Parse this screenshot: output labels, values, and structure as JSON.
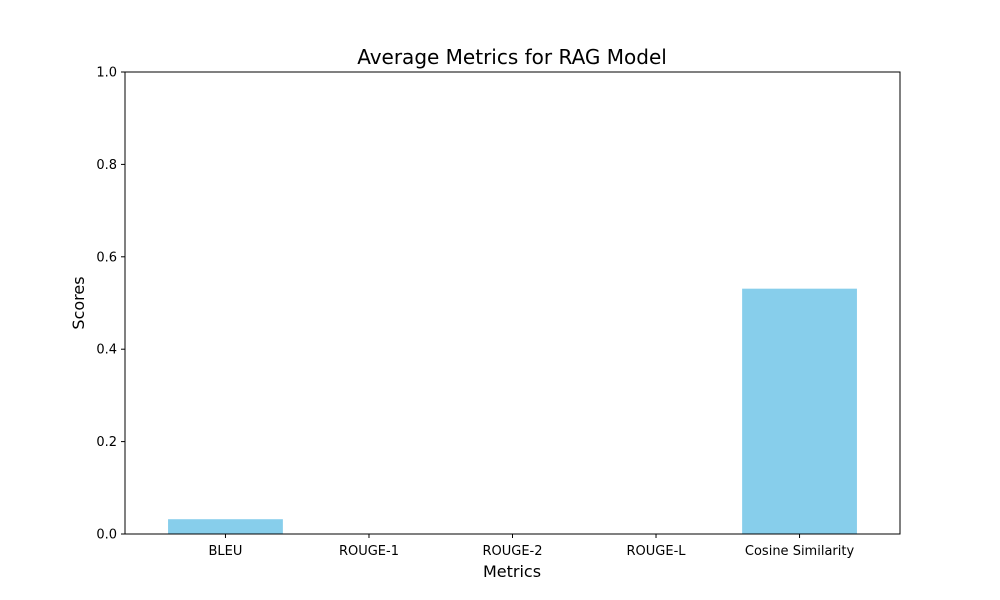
{
  "chart_data": {
    "type": "bar",
    "title": "Average Metrics for RAG Model",
    "xlabel": "Metrics",
    "ylabel": "Scores",
    "categories": [
      "BLEU",
      "ROUGE-1",
      "ROUGE-2",
      "ROUGE-L",
      "Cosine Similarity"
    ],
    "values": [
      0.032,
      0.0,
      0.0,
      0.0,
      0.531
    ],
    "ylim": [
      0,
      1
    ],
    "yticks": [
      0.0,
      0.2,
      0.4,
      0.6,
      0.8,
      1.0
    ],
    "ytick_labels": [
      "0.0",
      "0.2",
      "0.4",
      "0.6",
      "0.8",
      "1.0"
    ],
    "bar_color": "#87CEEB",
    "grid": false
  }
}
